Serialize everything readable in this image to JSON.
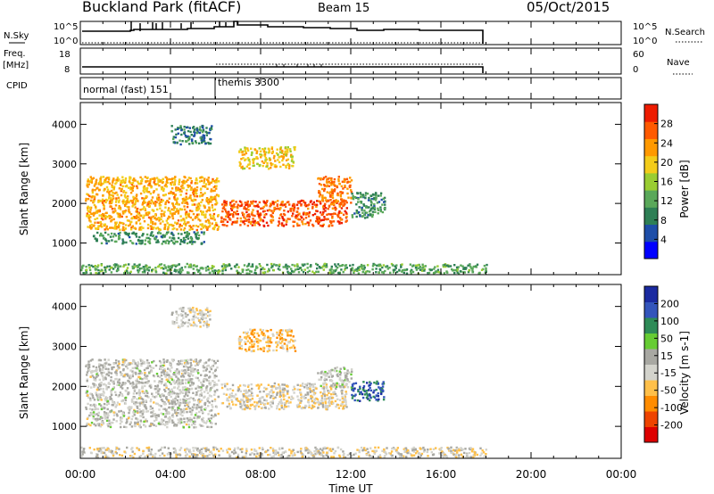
{
  "header": {
    "station": "Buckland Park (fitACF)",
    "beam": "Beam 15",
    "date": "05/Oct/2015"
  },
  "nsky_panel": {
    "left_label": "N.Sky",
    "left_ticks": [
      "10^5",
      "10^0"
    ],
    "right_ticks": [
      "10^5",
      "10^0"
    ],
    "right_label": "N.Search"
  },
  "freq_panel": {
    "left_label_line1": "Freq.",
    "left_label_line2": "[MHz]",
    "left_ticks": [
      "18",
      "8"
    ],
    "right_ticks": [
      "60",
      "0"
    ],
    "right_label": "Nave"
  },
  "cpid_panel": {
    "label": "CPID",
    "modes": [
      {
        "name": "normal (fast) 151",
        "start_hour": 0
      },
      {
        "name": "themis 3300",
        "start_hour": 6
      }
    ]
  },
  "x_axis": {
    "label": "Time UT",
    "range_hours": [
      0,
      24
    ],
    "tick_labels": [
      "00:00",
      "04:00",
      "08:00",
      "12:00",
      "16:00",
      "20:00",
      "00:00"
    ]
  },
  "colors": {
    "power_scale": [
      "#0000ff",
      "#1e4ea8",
      "#2e7f55",
      "#5aa85a",
      "#9acd32",
      "#f3cc1a",
      "#ff9900",
      "#ff5a00",
      "#ee1c00"
    ],
    "velocity_scale": [
      "#dd0000",
      "#ee4400",
      "#ff8c00",
      "#ffc04a",
      "#d3d3cc",
      "#a8a8a2",
      "#66cc33",
      "#2e8b57",
      "#3355bb",
      "#1a2aa0"
    ]
  },
  "chart_data": [
    {
      "type": "heatmap",
      "name": "power",
      "ylabel": "Slant Range [km]",
      "y_ticks": [
        1000,
        2000,
        3000,
        4000
      ],
      "ylim": [
        200,
        4550
      ],
      "xlim": [
        0,
        24
      ],
      "colorbar": {
        "label": "Power [dB]",
        "ticks": [
          "4",
          "8",
          "12",
          "16",
          "20",
          "24",
          "28"
        ],
        "range": [
          0,
          32
        ]
      },
      "regions": [
        {
          "x": [
            0.2,
            6.1
          ],
          "y": [
            1350,
            2700
          ],
          "value": 22
        },
        {
          "x": [
            0.5,
            5.5
          ],
          "y": [
            1000,
            1300
          ],
          "value": 10
        },
        {
          "x": [
            6.2,
            11.8
          ],
          "y": [
            1450,
            2100
          ],
          "value": 27
        },
        {
          "x": [
            10.5,
            12.0
          ],
          "y": [
            2000,
            2700
          ],
          "value": 25
        },
        {
          "x": [
            7.0,
            9.5
          ],
          "y": [
            2900,
            3450
          ],
          "value": 20
        },
        {
          "x": [
            12.0,
            13.5
          ],
          "y": [
            1650,
            2300
          ],
          "value": 10
        },
        {
          "x": [
            4.0,
            5.8
          ],
          "y": [
            3500,
            4000
          ],
          "value": 8
        },
        {
          "x": [
            0.0,
            18.0
          ],
          "y": [
            250,
            500
          ],
          "value": 12
        }
      ]
    },
    {
      "type": "heatmap",
      "name": "velocity",
      "ylabel": "Slant Range [km]",
      "y_ticks": [
        1000,
        2000,
        3000,
        4000
      ],
      "ylim": [
        200,
        4550
      ],
      "xlim": [
        0,
        24
      ],
      "colorbar": {
        "label": "Velocity [m s-1]",
        "ticks": [
          "200",
          "100",
          "50",
          "15",
          "-15",
          "-50",
          "-100",
          "-200"
        ],
        "range": [
          -250,
          250
        ]
      },
      "regions": [
        {
          "x": [
            0.2,
            6.1
          ],
          "y": [
            1000,
            2700
          ],
          "value": 0
        },
        {
          "x": [
            6.2,
            11.8
          ],
          "y": [
            1450,
            2100
          ],
          "value": -30
        },
        {
          "x": [
            10.5,
            12.0
          ],
          "y": [
            2000,
            2500
          ],
          "value": 10
        },
        {
          "x": [
            7.0,
            9.5
          ],
          "y": [
            2900,
            3450
          ],
          "value": -80
        },
        {
          "x": [
            12.0,
            13.5
          ],
          "y": [
            1650,
            2150
          ],
          "value": 160
        },
        {
          "x": [
            4.0,
            5.8
          ],
          "y": [
            3500,
            4000
          ],
          "value": -20
        },
        {
          "x": [
            0.0,
            18.0
          ],
          "y": [
            250,
            500
          ],
          "value": -25
        }
      ]
    }
  ]
}
